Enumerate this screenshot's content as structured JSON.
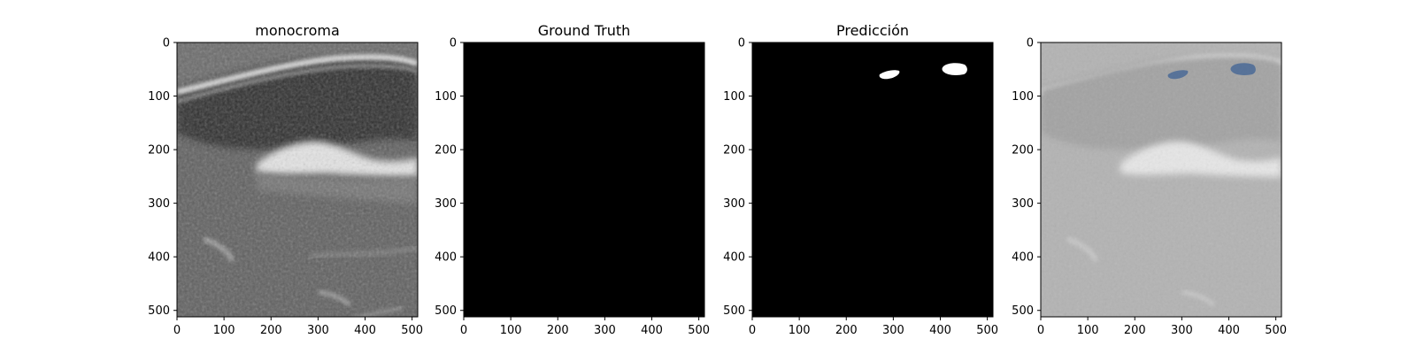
{
  "figure": {
    "panels": [
      {
        "id": "monocroma",
        "title": "monocroma",
        "kind": "ultrasound-grayscale",
        "x_ticks": [
          "0",
          "100",
          "200",
          "300",
          "400",
          "500"
        ],
        "y_ticks": [
          "0",
          "100",
          "200",
          "300",
          "400",
          "500"
        ]
      },
      {
        "id": "ground-truth",
        "title": "Ground Truth",
        "kind": "mask-empty",
        "x_ticks": [
          "0",
          "100",
          "200",
          "300",
          "400",
          "500"
        ],
        "y_ticks": [
          "0",
          "100",
          "200",
          "300",
          "400",
          "500"
        ]
      },
      {
        "id": "prediccion",
        "title": "Predicción",
        "kind": "mask-predicted",
        "x_ticks": [
          "0",
          "100",
          "200",
          "300",
          "400",
          "500"
        ],
        "y_ticks": [
          "0",
          "100",
          "200",
          "300",
          "400",
          "500"
        ]
      },
      {
        "id": "overlay",
        "title": "",
        "kind": "overlay",
        "x_ticks": [
          "0",
          "100",
          "200",
          "300",
          "400",
          "500"
        ],
        "y_ticks": [
          "0",
          "100",
          "200",
          "300",
          "400",
          "500"
        ]
      }
    ],
    "colors": {
      "mask_background": "#000000",
      "mask_foreground": "#ffffff",
      "overlay_region": "#4a6a96"
    }
  }
}
